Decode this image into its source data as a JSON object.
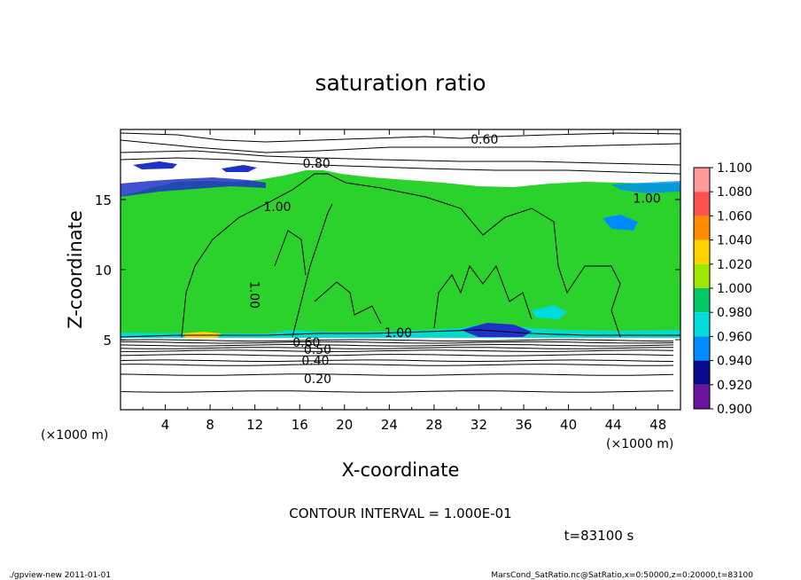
{
  "chart_data": {
    "type": "heatmap",
    "title": "saturation ratio",
    "xlabel": "X-coordinate",
    "ylabel": "Z-coordinate",
    "x_unit_left": "(×1000 m)",
    "x_unit_right": "(×1000 m)",
    "xlim": [
      0,
      50
    ],
    "ylim": [
      0,
      20
    ],
    "x_ticks": [
      4,
      8,
      12,
      16,
      20,
      24,
      28,
      32,
      36,
      40,
      44,
      48
    ],
    "y_ticks": [
      5,
      10,
      15
    ],
    "colorbar": {
      "levels": [
        "1.100",
        "1.080",
        "1.060",
        "1.040",
        "1.020",
        "1.000",
        "0.980",
        "0.960",
        "0.940",
        "0.920",
        "0.900"
      ],
      "colors": [
        "#ff9999",
        "#ff5050",
        "#ff2800",
        "#ff8c00",
        "#ffd200",
        "#a0e600",
        "#2cd22c",
        "#00c864",
        "#00dcdc",
        "#008cff",
        "#1e32c8",
        "#0a0a8c",
        "#6a14a0"
      ]
    },
    "contour_labels": [
      {
        "text": "0.60",
        "x": 32.5,
        "y": 19.3
      },
      {
        "text": "0.80",
        "x": 17.5,
        "y": 17.6
      },
      {
        "text": "1.00",
        "x": 14.0,
        "y": 14.5
      },
      {
        "text": "1.00",
        "x": 47.0,
        "y": 15.1
      },
      {
        "text": "1.00",
        "x": 12.0,
        "y": 8.2
      },
      {
        "text": "1.00",
        "x": 24.8,
        "y": 5.5
      },
      {
        "text": "0.60",
        "x": 16.6,
        "y": 4.8
      },
      {
        "text": "0.50",
        "x": 17.6,
        "y": 4.3
      },
      {
        "text": "0.40",
        "x": 17.4,
        "y": 3.5
      },
      {
        "text": "0.20",
        "x": 17.6,
        "y": 2.2
      }
    ],
    "contour_levels_lower": [
      4.95,
      4.8,
      4.6,
      4.4,
      4.2,
      3.9,
      3.5,
      3.2,
      2.5,
      1.3
    ]
  },
  "contour_interval": "CONTOUR INTERVAL = 1.000E-01",
  "time_label": "t=83100 s",
  "footer_left": "./gpview-new  2011-01-01",
  "footer_right": "MarsCond_SatRatio.nc@SatRatio,x=0:50000,z=0:20000,t=83100"
}
